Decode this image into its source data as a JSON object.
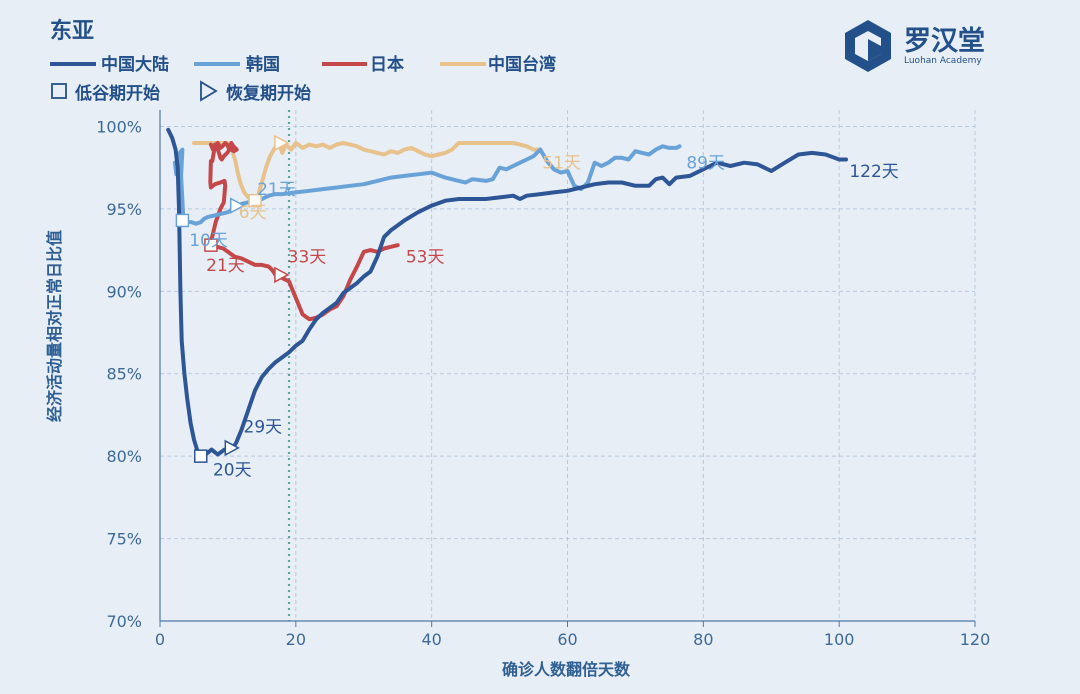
{
  "title": "东亚",
  "legend": {
    "series": [
      "中国大陆",
      "韩国",
      "日本",
      "中国台湾"
    ],
    "markers": [
      {
        "shape": "square",
        "label": "低谷期开始"
      },
      {
        "shape": "triangle",
        "label": "恢复期开始"
      }
    ]
  },
  "logo": {
    "name": "罗汉堂",
    "sub": "Luohan Academy"
  },
  "chart_data": {
    "type": "line",
    "xlabel": "确诊人数翻倍天数",
    "ylabel": "经济活动量相对正常日比值",
    "xlim": [
      0,
      120
    ],
    "ylim": [
      70,
      101
    ],
    "xticks": [
      0,
      20,
      40,
      60,
      80,
      100,
      120
    ],
    "yticks": [
      70,
      75,
      80,
      85,
      90,
      95,
      100
    ],
    "ytick_labels": [
      "70%",
      "75%",
      "80%",
      "85%",
      "90%",
      "95%",
      "100%"
    ],
    "grid": true,
    "vline": 19,
    "series": [
      {
        "name": "中国大陆",
        "color": "#2e5596",
        "points": [
          [
            1.2,
            99.8
          ],
          [
            1.8,
            99.3
          ],
          [
            2.3,
            98.6
          ],
          [
            2.6,
            97.5
          ],
          [
            2.8,
            95
          ],
          [
            3,
            90
          ],
          [
            3.2,
            87
          ],
          [
            3.6,
            85
          ],
          [
            4,
            83.5
          ],
          [
            4.5,
            82
          ],
          [
            5,
            81
          ],
          [
            5.6,
            80.2
          ],
          [
            6.2,
            79.9
          ],
          [
            7,
            80.2
          ],
          [
            7.6,
            80.4
          ],
          [
            8.5,
            80.1
          ],
          [
            9.5,
            80.4
          ],
          [
            10.5,
            80.4
          ],
          [
            11.2,
            80.8
          ],
          [
            12,
            81.6
          ],
          [
            13,
            82.8
          ],
          [
            14,
            84
          ],
          [
            15,
            84.8
          ],
          [
            16,
            85.3
          ],
          [
            17,
            85.7
          ],
          [
            18,
            86
          ],
          [
            19,
            86.3
          ],
          [
            20,
            86.7
          ],
          [
            21,
            87
          ],
          [
            22,
            87.7
          ],
          [
            23,
            88.3
          ],
          [
            24,
            88.7
          ],
          [
            25,
            89
          ],
          [
            26,
            89.3
          ],
          [
            27,
            89.9
          ],
          [
            28,
            90.2
          ],
          [
            29,
            90.5
          ],
          [
            30,
            90.9
          ],
          [
            31,
            91.2
          ],
          [
            32,
            92.1
          ],
          [
            33,
            93.3
          ],
          [
            34,
            93.7
          ],
          [
            35,
            94
          ],
          [
            36,
            94.3
          ],
          [
            38,
            94.8
          ],
          [
            40,
            95.2
          ],
          [
            42,
            95.5
          ],
          [
            44,
            95.6
          ],
          [
            46,
            95.6
          ],
          [
            48,
            95.6
          ],
          [
            50,
            95.7
          ],
          [
            52,
            95.8
          ],
          [
            53,
            95.6
          ],
          [
            54,
            95.8
          ],
          [
            56,
            95.9
          ],
          [
            58,
            96
          ],
          [
            60,
            96.1
          ],
          [
            62,
            96.3
          ],
          [
            64,
            96.5
          ],
          [
            66,
            96.6
          ],
          [
            68,
            96.6
          ],
          [
            70,
            96.4
          ],
          [
            72,
            96.4
          ],
          [
            73,
            96.8
          ],
          [
            74,
            96.9
          ],
          [
            75,
            96.5
          ],
          [
            76,
            96.9
          ],
          [
            78,
            97
          ],
          [
            80,
            97.4
          ],
          [
            81,
            97.6
          ],
          [
            82,
            97.8
          ],
          [
            84,
            97.6
          ],
          [
            86,
            97.8
          ],
          [
            88,
            97.7
          ],
          [
            90,
            97.3
          ],
          [
            92,
            97.8
          ],
          [
            94,
            98.3
          ],
          [
            96,
            98.4
          ],
          [
            98,
            98.3
          ],
          [
            100,
            98
          ],
          [
            101,
            98
          ]
        ]
      },
      {
        "name": "韩国",
        "color": "#69a2d6",
        "points": [
          [
            2.2,
            97.8
          ],
          [
            2.4,
            97.1
          ],
          [
            2.7,
            97.4
          ],
          [
            2.9,
            98.4
          ],
          [
            3.3,
            98.6
          ],
          [
            3.1,
            97
          ],
          [
            3.3,
            95.5
          ],
          [
            3.4,
            94.6
          ],
          [
            3.6,
            94.4
          ],
          [
            4,
            94.2
          ],
          [
            4.6,
            94.2
          ],
          [
            5.3,
            94.1
          ],
          [
            6,
            94.2
          ],
          [
            6.5,
            94.4
          ],
          [
            7,
            94.5
          ],
          [
            8,
            94.6
          ],
          [
            9,
            94.7
          ],
          [
            10,
            94.8
          ],
          [
            11,
            95.1
          ],
          [
            11.5,
            95.2
          ],
          [
            12,
            95.3
          ],
          [
            13,
            95.4
          ],
          [
            14,
            95.5
          ],
          [
            15,
            95.6
          ],
          [
            16,
            95.8
          ],
          [
            17,
            95.9
          ],
          [
            18,
            95.9
          ],
          [
            20,
            96
          ],
          [
            22,
            96.1
          ],
          [
            24,
            96.2
          ],
          [
            26,
            96.3
          ],
          [
            28,
            96.4
          ],
          [
            30,
            96.5
          ],
          [
            32,
            96.7
          ],
          [
            34,
            96.9
          ],
          [
            36,
            97
          ],
          [
            38,
            97.1
          ],
          [
            40,
            97.2
          ],
          [
            42,
            96.9
          ],
          [
            44,
            96.7
          ],
          [
            45,
            96.6
          ],
          [
            46,
            96.8
          ],
          [
            48,
            96.7
          ],
          [
            49,
            96.8
          ],
          [
            50,
            97.5
          ],
          [
            51,
            97.4
          ],
          [
            52,
            97.6
          ],
          [
            53,
            97.8
          ],
          [
            54,
            98
          ],
          [
            55,
            98.2
          ],
          [
            56,
            98.6
          ],
          [
            57,
            97.9
          ],
          [
            58,
            97.4
          ],
          [
            59,
            97.2
          ],
          [
            60,
            97.3
          ],
          [
            61,
            96.4
          ],
          [
            62,
            96.2
          ],
          [
            63,
            96.6
          ],
          [
            64,
            97.8
          ],
          [
            65,
            97.6
          ],
          [
            66,
            97.8
          ],
          [
            67,
            98.1
          ],
          [
            68,
            98.1
          ],
          [
            69,
            98
          ],
          [
            70,
            98.5
          ],
          [
            71,
            98.4
          ],
          [
            72,
            98.3
          ],
          [
            73,
            98.6
          ],
          [
            74,
            98.8
          ],
          [
            75,
            98.7
          ],
          [
            76,
            98.7
          ],
          [
            76.5,
            98.8
          ]
        ]
      },
      {
        "name": "日本",
        "color": "#c4484a",
        "points": [
          [
            7.5,
            98.9
          ],
          [
            7.8,
            98.6
          ],
          [
            8,
            98.8
          ],
          [
            8.5,
            99
          ],
          [
            8.9,
            98.7
          ],
          [
            9.2,
            98.8
          ],
          [
            9.6,
            99
          ],
          [
            9.9,
            98.9
          ],
          [
            10.2,
            98.6
          ],
          [
            10.5,
            98.6
          ],
          [
            10.9,
            98.5
          ],
          [
            11.3,
            98.6
          ],
          [
            10.8,
            98.8
          ],
          [
            10.5,
            99
          ],
          [
            10.2,
            98.6
          ],
          [
            9.9,
            98.4
          ],
          [
            9.4,
            98.2
          ],
          [
            9.1,
            98
          ],
          [
            8.9,
            98.1
          ],
          [
            8.6,
            98.5
          ],
          [
            8.3,
            98.8
          ],
          [
            8.1,
            98.9
          ],
          [
            7.9,
            98.4
          ],
          [
            7.7,
            97.9
          ],
          [
            7.5,
            97.9
          ],
          [
            7.4,
            96.6
          ],
          [
            7.5,
            96.3
          ],
          [
            8.1,
            96.5
          ],
          [
            8.9,
            96.6
          ],
          [
            9.5,
            96.7
          ],
          [
            9.6,
            96.4
          ],
          [
            9.4,
            95.4
          ],
          [
            8.9,
            95
          ],
          [
            8.2,
            94.2
          ],
          [
            7.8,
            93.5
          ],
          [
            7.5,
            93
          ],
          [
            8.4,
            92.7
          ],
          [
            9.3,
            92.6
          ],
          [
            10,
            92.4
          ],
          [
            11,
            92.1
          ],
          [
            12,
            92
          ],
          [
            13,
            91.8
          ],
          [
            14,
            91.6
          ],
          [
            15,
            91.6
          ],
          [
            16,
            91.5
          ],
          [
            16.5,
            91.3
          ],
          [
            17,
            91
          ],
          [
            18,
            90.8
          ],
          [
            19,
            90.6
          ],
          [
            20,
            89.6
          ],
          [
            21,
            88.6
          ],
          [
            22,
            88.3
          ],
          [
            23,
            88.4
          ],
          [
            24,
            88.6
          ],
          [
            25,
            88.9
          ],
          [
            26,
            89.1
          ],
          [
            27,
            89.7
          ],
          [
            28,
            90.7
          ],
          [
            29,
            91.5
          ],
          [
            30,
            92.4
          ],
          [
            31,
            92.5
          ],
          [
            32,
            92.4
          ],
          [
            33,
            92.6
          ],
          [
            34,
            92.7
          ],
          [
            35,
            92.8
          ]
        ]
      },
      {
        "name": "中国台湾",
        "color": "#e8c28c",
        "points": [
          [
            5,
            99
          ],
          [
            7,
            99
          ],
          [
            9,
            99
          ],
          [
            10,
            99
          ],
          [
            10.5,
            98.7
          ],
          [
            10.8,
            98.3
          ],
          [
            11.1,
            97.9
          ],
          [
            11.5,
            97.1
          ],
          [
            11.9,
            96.5
          ],
          [
            12.4,
            96
          ],
          [
            13,
            95.7
          ],
          [
            13.7,
            95.5
          ],
          [
            14.1,
            95.5
          ],
          [
            14.5,
            95.9
          ],
          [
            15,
            96.6
          ],
          [
            15.6,
            97.5
          ],
          [
            16.2,
            98.2
          ],
          [
            16.9,
            98.7
          ],
          [
            17.5,
            99
          ],
          [
            18,
            98.4
          ],
          [
            18.5,
            98.9
          ],
          [
            19.3,
            98.6
          ],
          [
            20,
            99
          ],
          [
            21,
            98.7
          ],
          [
            22,
            98.9
          ],
          [
            23,
            98.8
          ],
          [
            24,
            98.9
          ],
          [
            25,
            98.7
          ],
          [
            26,
            98.9
          ],
          [
            27,
            99
          ],
          [
            28,
            98.9
          ],
          [
            29,
            98.8
          ],
          [
            30,
            98.6
          ],
          [
            31,
            98.5
          ],
          [
            32,
            98.4
          ],
          [
            33,
            98.3
          ],
          [
            34,
            98.5
          ],
          [
            35,
            98.4
          ],
          [
            36,
            98.6
          ],
          [
            37,
            98.7
          ],
          [
            38,
            98.5
          ],
          [
            39,
            98.3
          ],
          [
            40,
            98.2
          ],
          [
            41,
            98.3
          ],
          [
            42,
            98.4
          ],
          [
            43,
            98.6
          ],
          [
            44,
            99
          ],
          [
            45,
            99
          ],
          [
            46,
            99
          ],
          [
            48,
            99
          ],
          [
            50,
            99
          ],
          [
            52,
            99
          ],
          [
            53,
            98.9
          ],
          [
            54,
            98.8
          ],
          [
            55,
            98.6
          ],
          [
            56,
            98.6
          ]
        ]
      }
    ],
    "markers": [
      {
        "series": "中国大陆",
        "type": "square",
        "x": 6,
        "y": 80
      },
      {
        "series": "中国大陆",
        "type": "triangle",
        "x": 10.5,
        "y": 80.5
      },
      {
        "series": "韩国",
        "type": "square",
        "x": 3.3,
        "y": 94.3
      },
      {
        "series": "韩国",
        "type": "triangle",
        "x": 11.3,
        "y": 95.2
      },
      {
        "series": "日本",
        "type": "square",
        "x": 7.5,
        "y": 92.8
      },
      {
        "series": "日本",
        "type": "triangle",
        "x": 17.8,
        "y": 91
      },
      {
        "series": "中国台湾",
        "type": "square",
        "x": 14,
        "y": 95.5
      },
      {
        "series": "中国台湾",
        "type": "triangle",
        "x": 17.8,
        "y": 99
      }
    ],
    "annotations": [
      {
        "text": "20天",
        "x": 7.8,
        "y": 79.2,
        "series": "中国大陆"
      },
      {
        "text": "29天",
        "x": 12.3,
        "y": 81.8,
        "series": "中国大陆"
      },
      {
        "text": "122天",
        "x": 101.5,
        "y": 97.3,
        "series": "中国大陆"
      },
      {
        "text": "10天",
        "x": 4.3,
        "y": 93.1,
        "series": "韩国"
      },
      {
        "text": "21天",
        "x": 14.3,
        "y": 96.2,
        "series": "韩国"
      },
      {
        "text": "89天",
        "x": 77.5,
        "y": 97.8,
        "series": "韩国"
      },
      {
        "text": "21天",
        "x": 6.8,
        "y": 91.6,
        "series": "日本"
      },
      {
        "text": "33天",
        "x": 18.8,
        "y": 92.1,
        "series": "日本"
      },
      {
        "text": "53天",
        "x": 36.2,
        "y": 92.1,
        "series": "日本"
      },
      {
        "text": "6天",
        "x": 11.6,
        "y": 94.8,
        "series": "中国台湾"
      },
      {
        "text": "51天",
        "x": 56.3,
        "y": 97.8,
        "series": "中国台湾"
      }
    ]
  }
}
